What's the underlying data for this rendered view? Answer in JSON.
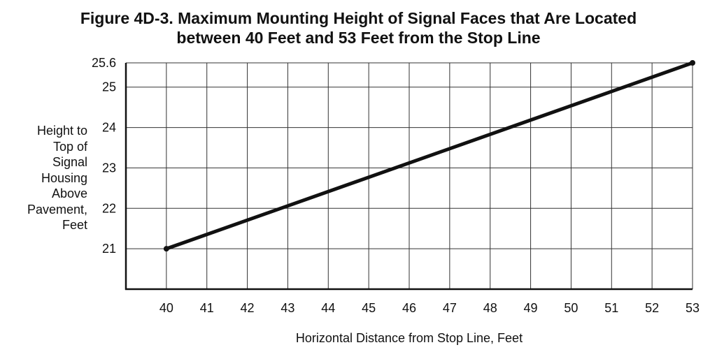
{
  "chart_data": {
    "type": "line",
    "title_lines": [
      "Figure 4D-3.  Maximum Mounting Height of Signal Faces that Are Located",
      "between 40 Feet and 53 Feet from the Stop Line"
    ],
    "xlabel": "Horizontal Distance from Stop Line, Feet",
    "ylabel_lines": [
      "Height to",
      "Top of",
      "Signal",
      "Housing",
      "Above",
      "Pavement,",
      "Feet"
    ],
    "xlim": [
      39,
      53
    ],
    "ylim": [
      20,
      25.6
    ],
    "x_ticks": [
      40,
      41,
      42,
      43,
      44,
      45,
      46,
      47,
      48,
      49,
      50,
      51,
      52,
      53
    ],
    "y_ticks": [
      "21",
      "22",
      "23",
      "24",
      "25",
      "25.6"
    ],
    "y_tick_values": [
      21,
      22,
      23,
      24,
      25,
      25.6
    ],
    "grid": true,
    "series": [
      {
        "color": "#111111",
        "x": [
          40,
          53
        ],
        "y": [
          21,
          25.6
        ]
      }
    ]
  }
}
